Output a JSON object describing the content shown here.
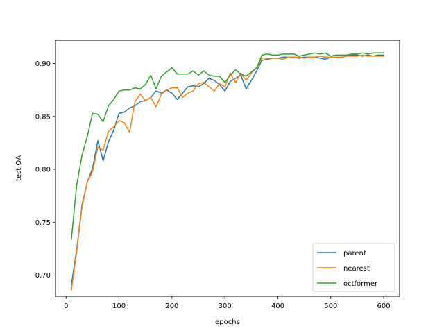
{
  "chart_data": {
    "type": "line",
    "title": "",
    "xlabel": "epochs",
    "ylabel": "test OA",
    "xlim": [
      -20,
      630
    ],
    "ylim": [
      0.68,
      0.922
    ],
    "x_ticks": [
      0,
      100,
      200,
      300,
      400,
      500,
      600
    ],
    "y_ticks": [
      0.7,
      0.75,
      0.8,
      0.85,
      0.9
    ],
    "x_tick_labels": [
      "0",
      "100",
      "200",
      "300",
      "400",
      "500",
      "600"
    ],
    "y_tick_labels": [
      "0.70",
      "0.75",
      "0.80",
      "0.85",
      "0.90"
    ],
    "grid": false,
    "legend_position": "lower-right",
    "x": [
      10,
      20,
      30,
      40,
      50,
      60,
      70,
      80,
      90,
      100,
      110,
      120,
      130,
      140,
      150,
      160,
      170,
      180,
      190,
      200,
      210,
      220,
      230,
      240,
      250,
      260,
      270,
      280,
      290,
      300,
      310,
      320,
      330,
      340,
      350,
      360,
      370,
      380,
      390,
      400,
      410,
      420,
      430,
      440,
      450,
      460,
      470,
      480,
      490,
      500,
      510,
      520,
      530,
      540,
      550,
      560,
      570,
      580,
      590,
      600
    ],
    "series": [
      {
        "name": "parent",
        "color": "#1f77b4",
        "values": [
          0.691,
          0.724,
          0.766,
          0.788,
          0.801,
          0.827,
          0.808,
          0.826,
          0.837,
          0.853,
          0.854,
          0.858,
          0.86,
          0.864,
          0.865,
          0.868,
          0.874,
          0.872,
          0.875,
          0.872,
          0.866,
          0.872,
          0.878,
          0.879,
          0.878,
          0.881,
          0.886,
          0.884,
          0.88,
          0.874,
          0.883,
          0.886,
          0.889,
          0.876,
          0.884,
          0.893,
          0.903,
          0.904,
          0.905,
          0.905,
          0.906,
          0.906,
          0.906,
          0.905,
          0.906,
          0.906,
          0.906,
          0.905,
          0.904,
          0.906,
          0.906,
          0.906,
          0.907,
          0.908,
          0.908,
          0.907,
          0.908,
          0.907,
          0.908,
          0.908
        ]
      },
      {
        "name": "nearest",
        "color": "#ff7f0e",
        "values": [
          0.686,
          0.722,
          0.764,
          0.788,
          0.798,
          0.821,
          0.818,
          0.836,
          0.84,
          0.846,
          0.844,
          0.835,
          0.864,
          0.871,
          0.865,
          0.868,
          0.859,
          0.871,
          0.875,
          0.877,
          0.877,
          0.868,
          0.872,
          0.874,
          0.881,
          0.882,
          0.878,
          0.874,
          0.881,
          0.878,
          0.891,
          0.882,
          0.891,
          0.884,
          0.891,
          0.896,
          0.905,
          0.905,
          0.905,
          0.905,
          0.904,
          0.906,
          0.906,
          0.906,
          0.905,
          0.906,
          0.906,
          0.907,
          0.906,
          0.906,
          0.906,
          0.906,
          0.907,
          0.907,
          0.907,
          0.908,
          0.907,
          0.907,
          0.907,
          0.907
        ]
      },
      {
        "name": "octformer",
        "color": "#2ca02c",
        "values": [
          0.734,
          0.785,
          0.813,
          0.831,
          0.853,
          0.852,
          0.845,
          0.86,
          0.866,
          0.874,
          0.875,
          0.875,
          0.877,
          0.876,
          0.88,
          0.889,
          0.876,
          0.888,
          0.892,
          0.896,
          0.89,
          0.89,
          0.89,
          0.893,
          0.889,
          0.893,
          0.889,
          0.888,
          0.888,
          0.882,
          0.889,
          0.894,
          0.89,
          0.888,
          0.892,
          0.896,
          0.908,
          0.909,
          0.908,
          0.908,
          0.909,
          0.909,
          0.909,
          0.907,
          0.908,
          0.909,
          0.91,
          0.909,
          0.91,
          0.907,
          0.908,
          0.908,
          0.908,
          0.909,
          0.909,
          0.91,
          0.909,
          0.91,
          0.91,
          0.91
        ]
      }
    ]
  }
}
